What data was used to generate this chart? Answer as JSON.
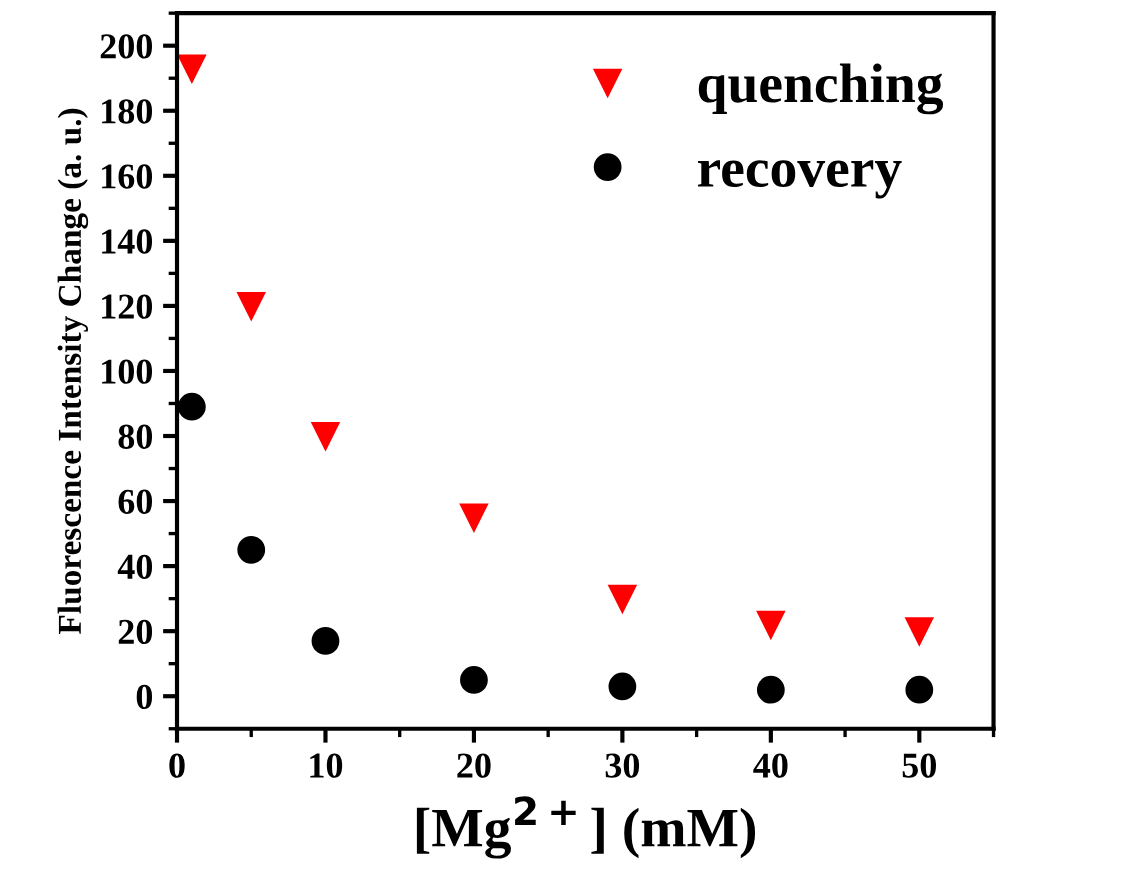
{
  "chart_data": {
    "type": "scatter",
    "xlabel": "[Mg$^{2+}$] (mM)",
    "ylabel": "Fluorescence Intensity Change (a. u.)",
    "xlim": [
      0,
      55
    ],
    "xticks": [
      0,
      10,
      20,
      30,
      40,
      50
    ],
    "ylim": [
      -10,
      210
    ],
    "yticks": [
      0,
      20,
      40,
      60,
      80,
      100,
      120,
      140,
      160,
      180,
      200
    ],
    "x": [
      1,
      5,
      10,
      20,
      30,
      40,
      50
    ],
    "series": [
      {
        "name": "quenching",
        "color": "#ff0000",
        "marker": "triangle",
        "values": [
          193,
          120,
          80,
          55,
          30,
          22,
          20
        ]
      },
      {
        "name": "recovery",
        "color": "#000000",
        "marker": "circle",
        "values": [
          89,
          45,
          17,
          5,
          3,
          2,
          2
        ]
      }
    ],
    "legend": "top right",
    "grid": false
  }
}
